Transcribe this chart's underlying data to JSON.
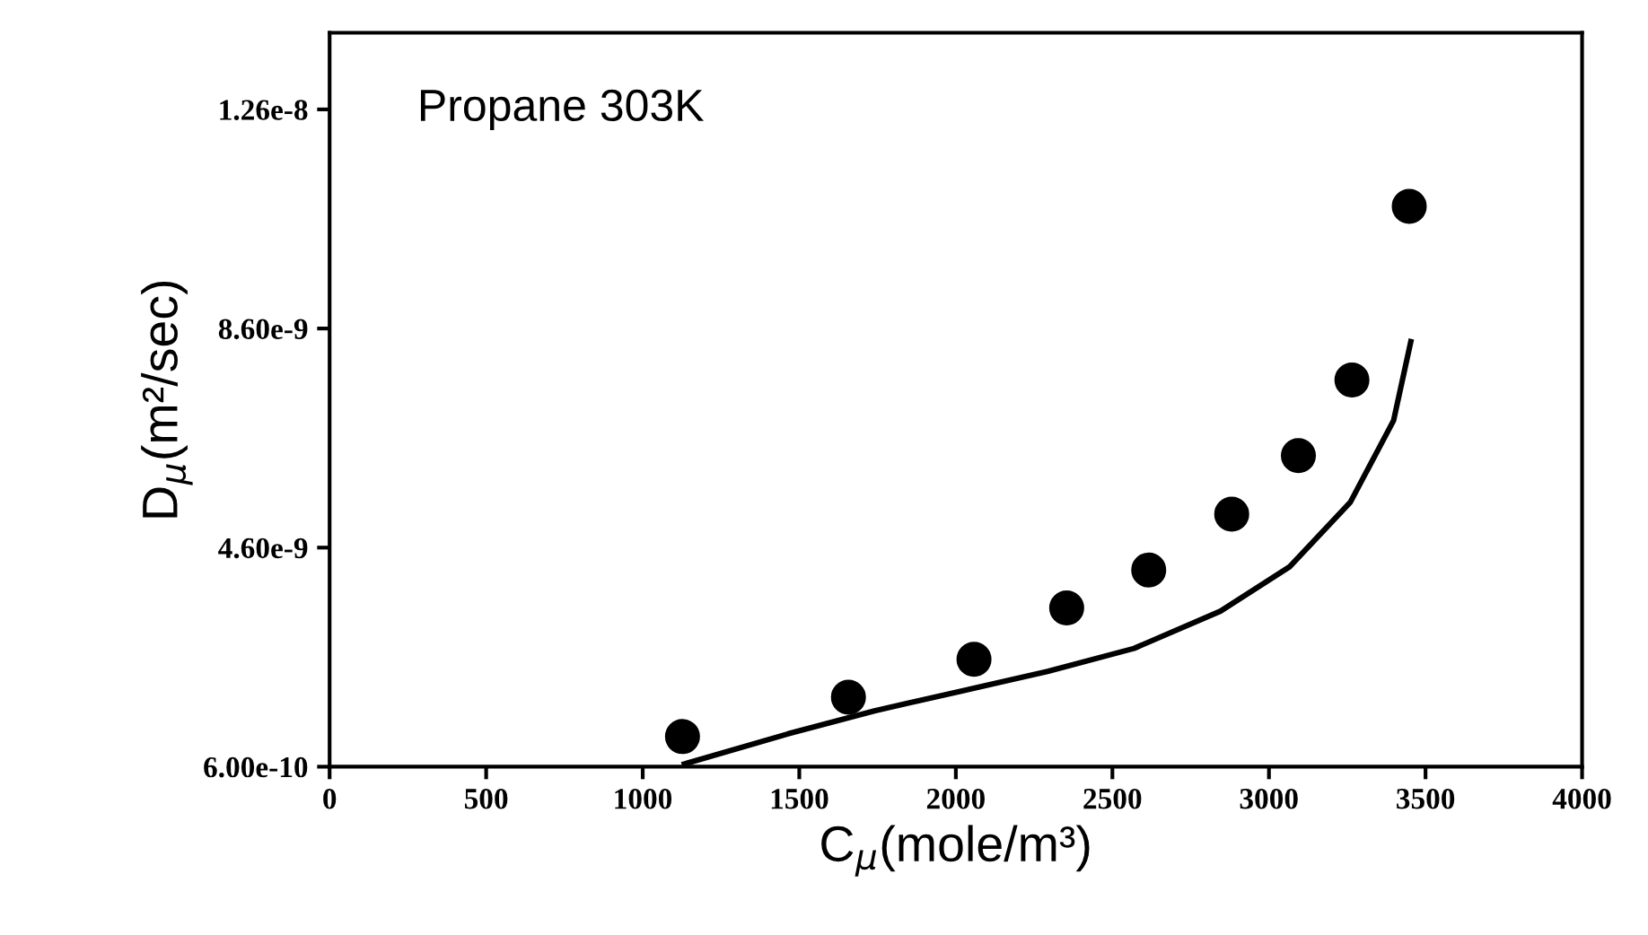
{
  "chart_data": {
    "type": "scatter",
    "xlabel": "C$_{μ}$(mole/m³)",
    "ylabel": "D$_{μ}$(m²/sec)",
    "annotations": [
      "Propane 303K"
    ],
    "xlim": [
      0,
      4000
    ],
    "xticks": [
      0,
      500,
      1000,
      1500,
      2000,
      2500,
      3000,
      3500,
      4000
    ],
    "ylim": [
      6e-10,
      1.4e-08
    ],
    "yticks": [
      {
        "value": 6e-10,
        "label": "6.00e-10"
      },
      {
        "value": 4.6e-09,
        "label": "4.60e-9"
      },
      {
        "value": 8.6e-09,
        "label": "8.60e-9"
      },
      {
        "value": 1.26e-08,
        "label": "1.26e-8"
      }
    ],
    "grid": false,
    "legend": false,
    "series": [
      {
        "color": "#000000",
        "marker": "circle",
        "x": [
          1127,
          1657,
          2058,
          2354,
          2616,
          2881,
          3094,
          3265,
          3448
        ],
        "values": [
          1.15e-09,
          1.87e-09,
          2.56e-09,
          3.5e-09,
          4.19e-09,
          5.21e-09,
          6.28e-09,
          7.66e-09,
          1.083e-08
        ]
      },
      {
        "type": "line",
        "color": "#000000",
        "marker": "none",
        "line_style": "solid",
        "x": [
          1133,
          1464,
          1740,
          2017,
          2293,
          2569,
          2845,
          3066,
          3260,
          3398,
          3453
        ],
        "values": [
          6.5e-10,
          1.2e-09,
          1.62e-09,
          1.98e-09,
          2.34e-09,
          2.76e-09,
          3.44e-09,
          4.25e-09,
          5.43e-09,
          6.92e-09,
          8.36e-09
        ]
      }
    ]
  }
}
